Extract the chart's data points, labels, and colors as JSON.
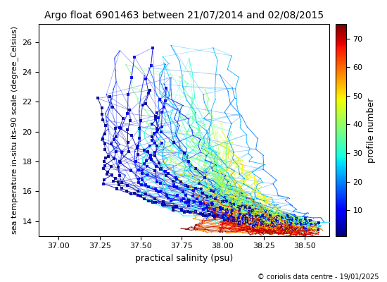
{
  "title": "Argo float 6901463 between 21/07/2014 and 02/08/2015",
  "xlabel": "practical salinity (psu)",
  "ylabel": "sea temperature in-situ its-90 scale (degree_Celsius)",
  "colorbar_label": "profile number",
  "copyright": "© coriolis data centre - 19/01/2025",
  "xlim": [
    36.88,
    38.65
  ],
  "ylim": [
    13.0,
    27.2
  ],
  "xticks": [
    37.0,
    37.25,
    37.5,
    37.75,
    38.0,
    38.25,
    38.5
  ],
  "yticks": [
    14,
    16,
    18,
    20,
    22,
    24,
    26
  ],
  "colorbar_ticks": [
    10,
    20,
    30,
    40,
    50,
    60,
    70
  ],
  "n_profiles": 75,
  "cmap": "jet",
  "vmin": 1,
  "vmax": 75
}
